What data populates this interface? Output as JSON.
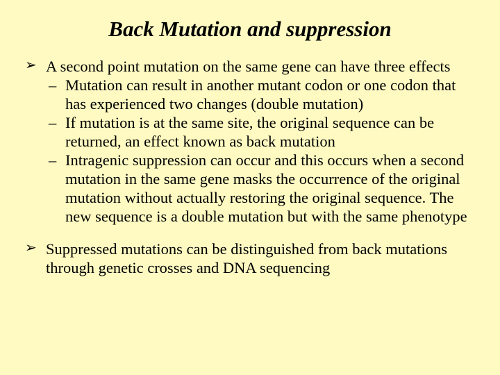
{
  "background_color": "#fefac2",
  "text_color": "#000000",
  "font_family": "Times New Roman",
  "title": {
    "text": "Back Mutation and suppression",
    "font_style": "italic",
    "font_size_pt": 31,
    "alignment": "center"
  },
  "body_font_size_pt": 22.5,
  "bullets": [
    {
      "marker": "➢",
      "text": "A second point mutation on the same gene can have three effects",
      "sub": [
        {
          "marker": "–",
          "text": "Mutation can result in another mutant codon or one codon that has experienced two changes (double mutation)"
        },
        {
          "marker": "–",
          "text": "If mutation is at the same site, the original sequence can be returned, an effect known as back mutation"
        },
        {
          "marker": "–",
          "text": "Intragenic suppression can occur and this occurs when a second mutation in the same gene masks the occurrence of the original mutation without actually restoring the original sequence. The new sequence is a double mutation but with the same phenotype"
        }
      ]
    },
    {
      "marker": "➢",
      "text": "Suppressed mutations can be distinguished from back mutations through genetic crosses and DNA sequencing",
      "sub": []
    }
  ]
}
